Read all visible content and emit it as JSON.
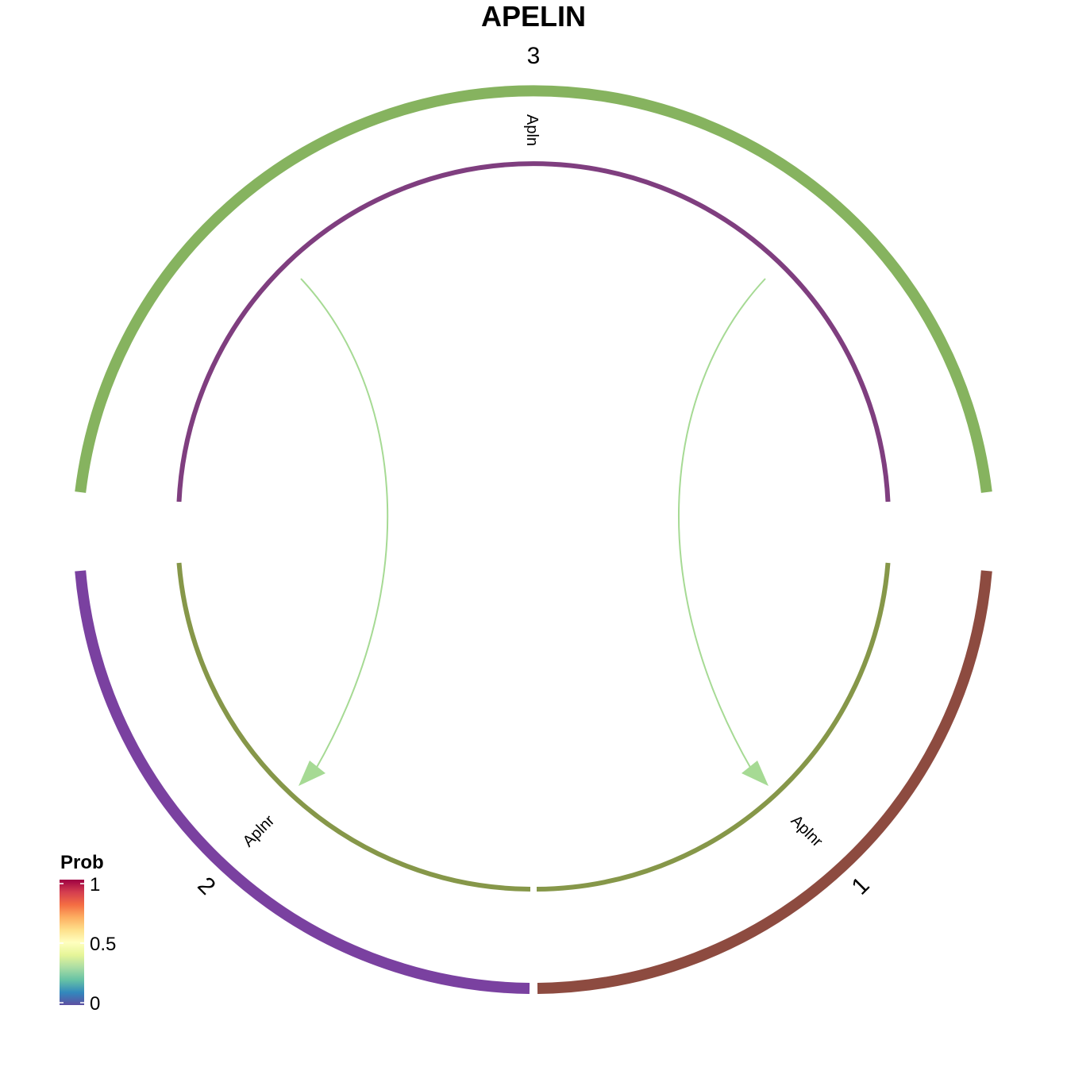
{
  "title": "APELIN",
  "groups": [
    {
      "id": "3",
      "label": "3",
      "color": "#86B35F"
    },
    {
      "id": "2",
      "label": "2",
      "color": "#7A41A0"
    },
    {
      "id": "1",
      "label": "1",
      "color": "#8D4B40"
    }
  ],
  "genes": [
    {
      "label": "Apln",
      "group": "3",
      "color": "#7F3E7F"
    },
    {
      "label": "Aplnr",
      "group": "2",
      "color": "#869749"
    },
    {
      "label": "Aplnr",
      "group": "1",
      "color": "#869749"
    }
  ],
  "links": [
    {
      "from": "Apln",
      "to": "Aplnr",
      "source_group": "3",
      "target_group": "2",
      "color": "#A6DA94"
    },
    {
      "from": "Apln",
      "to": "Aplnr",
      "source_group": "3",
      "target_group": "1",
      "color": "#A6DA94"
    }
  ],
  "legend": {
    "title": "Prob",
    "ticks": [
      "1",
      "0.5",
      "0"
    ],
    "scale": "Spectral",
    "colors": [
      "#5E4FA2",
      "#3288BD",
      "#66C2A5",
      "#ABDDA4",
      "#E6F598",
      "#FFFFBF",
      "#FEE08B",
      "#FDAE61",
      "#F46D43",
      "#D53E4F",
      "#9E0142"
    ]
  }
}
